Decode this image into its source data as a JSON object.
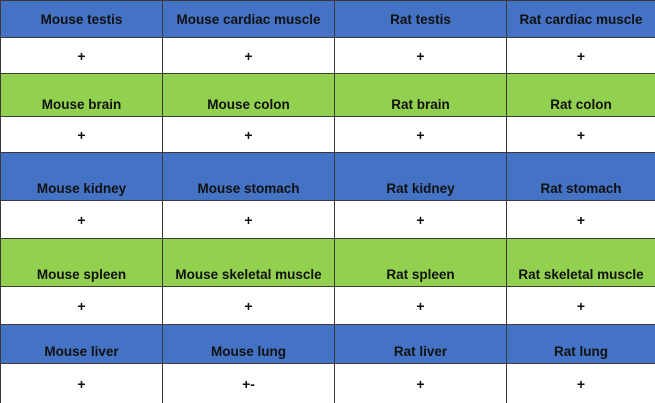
{
  "colors": {
    "blue_header": "#4472c4",
    "green_header": "#92d050",
    "value_background": "#ffffff",
    "border": "#3a3a3a"
  },
  "rows": [
    {
      "type": "header",
      "color": "blue",
      "cells": [
        "Mouse testis",
        "Mouse cardiac muscle",
        "Rat testis",
        "Rat cardiac muscle"
      ]
    },
    {
      "type": "value",
      "cells": [
        "+",
        "+",
        "+",
        "+"
      ]
    },
    {
      "type": "header",
      "color": "green",
      "cells": [
        "Mouse brain",
        "Mouse colon",
        "Rat brain",
        "Rat colon"
      ]
    },
    {
      "type": "value",
      "cells": [
        "+",
        "+",
        "+",
        "+"
      ]
    },
    {
      "type": "header",
      "color": "blue",
      "cells": [
        "Mouse kidney",
        "Mouse stomach",
        "Rat kidney",
        "Rat stomach"
      ]
    },
    {
      "type": "value",
      "cells": [
        "+",
        "+",
        "+",
        "+"
      ]
    },
    {
      "type": "header",
      "color": "green",
      "cells": [
        "Mouse spleen",
        "Mouse skeletal muscle",
        "Rat spleen",
        "Rat skeletal muscle"
      ]
    },
    {
      "type": "value",
      "cells": [
        "+",
        "+",
        "+",
        "+"
      ]
    },
    {
      "type": "header",
      "color": "blue",
      "cells": [
        "Mouse liver",
        "Mouse lung",
        "Rat liver",
        "Rat lung"
      ]
    },
    {
      "type": "value",
      "cells": [
        "+",
        "+-",
        "+",
        "+"
      ]
    }
  ]
}
